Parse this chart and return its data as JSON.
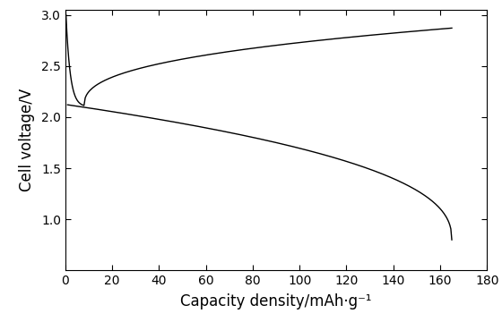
{
  "title": "",
  "xlabel": "Capacity density/mAh·g⁻¹",
  "ylabel": "Cell voltage/V",
  "xlim": [
    0,
    180
  ],
  "ylim": [
    0.5,
    3.05
  ],
  "xticks": [
    0,
    20,
    40,
    60,
    80,
    100,
    120,
    140,
    160,
    180
  ],
  "yticks": [
    1.0,
    1.5,
    2.0,
    2.5,
    3.0
  ],
  "line_color": "#000000",
  "background_color": "#ffffff",
  "charge_spike_start_y": 3.0,
  "charge_valley_x": 8.0,
  "charge_valley_y": 2.1,
  "charge_end_x": 165.0,
  "charge_end_y": 2.87,
  "discharge_start_x": 1.0,
  "discharge_start_y": 2.12,
  "discharge_end_x": 165.0,
  "discharge_end_y": 0.8
}
